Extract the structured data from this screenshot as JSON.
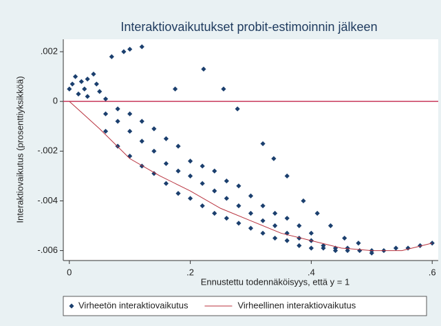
{
  "chart_data": {
    "type": "scatter",
    "title": "Interaktiovaikutukset probit-estimoinnin jälkeen",
    "x_label": "Ennustettu todennäköisyys, että y = 1",
    "y_label": "Interaktiovaikutus (prosenttiyksikköä)",
    "xlim": [
      -0.01,
      0.61
    ],
    "ylim": [
      -0.0064,
      0.0025
    ],
    "xticks": [
      0,
      {
        "value": 0.2,
        "label": ".2"
      },
      {
        "value": 0.4,
        "label": ".4"
      },
      {
        "value": 0.6,
        "label": ".6"
      }
    ],
    "yticks": [
      {
        "value": 0.002,
        "label": ".002"
      },
      0,
      {
        "value": -0.002,
        "label": "-.002"
      },
      {
        "value": -0.004,
        "label": "-.004"
      },
      {
        "value": -0.006,
        "label": "-.006"
      }
    ],
    "reference_line": {
      "value": 0,
      "color": "#c8385a"
    },
    "series": [
      {
        "name": "Virheetön interaktiovaikutus",
        "type": "scatter",
        "color": "#1b3f6e",
        "x": [
          0,
          0.005,
          0.01,
          0.02,
          0.025,
          0.03,
          0.04,
          0.045,
          0.05,
          0.03,
          0.015,
          0.07,
          0.09,
          0.1,
          0.12,
          0.175,
          0.222,
          0.255,
          0.278,
          0.32,
          0.338,
          0.36,
          0.387,
          0.41,
          0.432,
          0.455,
          0.478,
          0.06,
          0.06,
          0.06,
          0.08,
          0.08,
          0.08,
          0.1,
          0.1,
          0.1,
          0.12,
          0.12,
          0.12,
          0.14,
          0.14,
          0.14,
          0.16,
          0.16,
          0.16,
          0.18,
          0.18,
          0.18,
          0.2,
          0.2,
          0.2,
          0.22,
          0.22,
          0.22,
          0.24,
          0.24,
          0.24,
          0.26,
          0.26,
          0.26,
          0.28,
          0.28,
          0.28,
          0.3,
          0.3,
          0.3,
          0.32,
          0.32,
          0.32,
          0.34,
          0.34,
          0.34,
          0.36,
          0.36,
          0.36,
          0.38,
          0.38,
          0.38,
          0.4,
          0.4,
          0.4,
          0.42,
          0.42,
          0.44,
          0.44,
          0.46,
          0.46,
          0.48,
          0.5,
          0.5,
          0.52,
          0.54,
          0.56,
          0.58,
          0.6
        ],
        "values": [
          0.0005,
          0.0007,
          0.001,
          0.0008,
          0.0005,
          0.0009,
          0.0011,
          0.0007,
          0.0004,
          0.0002,
          0.0003,
          0.0018,
          0.002,
          0.0021,
          0.0022,
          0.0005,
          0.0013,
          0.0005,
          -0.0003,
          -0.0017,
          -0.0023,
          -0.003,
          -0.004,
          -0.0045,
          -0.005,
          -0.0055,
          -0.0057,
          -0.0005,
          -0.0012,
          0.0001,
          -0.0008,
          -0.0018,
          -0.0003,
          -0.0012,
          -0.0022,
          -0.0005,
          -0.0016,
          -0.0026,
          -0.0008,
          -0.002,
          -0.0029,
          -0.0011,
          -0.0025,
          -0.0033,
          -0.0015,
          -0.0028,
          -0.0037,
          -0.0018,
          -0.003,
          -0.0039,
          -0.0024,
          -0.0033,
          -0.0042,
          -0.0026,
          -0.0036,
          -0.0045,
          -0.0028,
          -0.0039,
          -0.0047,
          -0.0032,
          -0.0042,
          -0.0049,
          -0.0034,
          -0.0045,
          -0.0051,
          -0.0038,
          -0.0048,
          -0.0053,
          -0.0042,
          -0.005,
          -0.0055,
          -0.0045,
          -0.0053,
          -0.0056,
          -0.0047,
          -0.0055,
          -0.0058,
          -0.005,
          -0.0056,
          -0.0059,
          -0.0053,
          -0.0058,
          -0.0059,
          -0.0059,
          -0.006,
          -0.0059,
          -0.006,
          -0.006,
          -0.006,
          -0.0061,
          -0.006,
          -0.0059,
          -0.0059,
          -0.0058,
          -0.0057
        ]
      },
      {
        "name": "Virheellinen interaktiovaikutus",
        "type": "line",
        "color": "#b8323e",
        "x": [
          0,
          0.05,
          0.1,
          0.15,
          0.2,
          0.25,
          0.3,
          0.35,
          0.4,
          0.45,
          0.5,
          0.55,
          0.6
        ],
        "values": [
          0,
          -0.0011,
          -0.0023,
          -0.003,
          -0.0036,
          -0.0043,
          -0.0048,
          -0.0053,
          -0.0056,
          -0.0059,
          -0.006,
          -0.006,
          -0.0057
        ]
      }
    ]
  }
}
